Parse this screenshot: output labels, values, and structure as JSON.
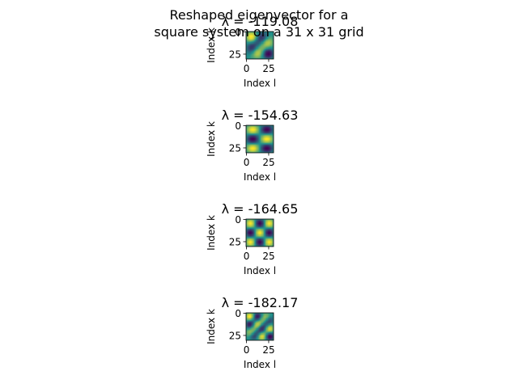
{
  "figure": {
    "suptitle_line1": "Reshaped eigenvector for a",
    "suptitle_line2": "square system on a 31 x 31 grid"
  },
  "chart_data": [
    {
      "type": "heatmap",
      "title": "λ = -119.08",
      "xlabel": "Index l",
      "ylabel": "Index k",
      "grid_size": [
        31,
        31
      ],
      "xticks": [
        "0",
        "25"
      ],
      "yticks": [
        "0",
        "25"
      ],
      "colormap": "viridis",
      "mode": [
        2,
        3
      ],
      "pattern": "diagonal",
      "colors": {
        "low": "#440154",
        "mid": "#21918c",
        "high": "#fde725"
      }
    },
    {
      "type": "heatmap",
      "title": "λ = -154.63",
      "xlabel": "Index l",
      "ylabel": "Index k",
      "grid_size": [
        31,
        31
      ],
      "xticks": [
        "0",
        "25"
      ],
      "yticks": [
        "0",
        "25"
      ],
      "colormap": "viridis",
      "mode": [
        3,
        2
      ],
      "pattern": "product",
      "colors": {
        "low": "#440154",
        "mid": "#21918c",
        "high": "#fde725"
      }
    },
    {
      "type": "heatmap",
      "title": "λ = -164.65",
      "xlabel": "Index l",
      "ylabel": "Index k",
      "grid_size": [
        31,
        31
      ],
      "xticks": [
        "0",
        "25"
      ],
      "yticks": [
        "0",
        "25"
      ],
      "colormap": "viridis",
      "mode": [
        3,
        3
      ],
      "pattern": "product",
      "colors": {
        "low": "#440154",
        "mid": "#21918c",
        "high": "#fde725"
      }
    },
    {
      "type": "heatmap",
      "title": "λ = -182.17",
      "xlabel": "Index l",
      "ylabel": "Index k",
      "grid_size": [
        31,
        31
      ],
      "xticks": [
        "0",
        "25"
      ],
      "yticks": [
        "0",
        "25"
      ],
      "colormap": "viridis",
      "mode": [
        4,
        3
      ],
      "pattern": "diagonal",
      "colors": {
        "low": "#440154",
        "mid": "#21918c",
        "high": "#fde725"
      }
    }
  ]
}
